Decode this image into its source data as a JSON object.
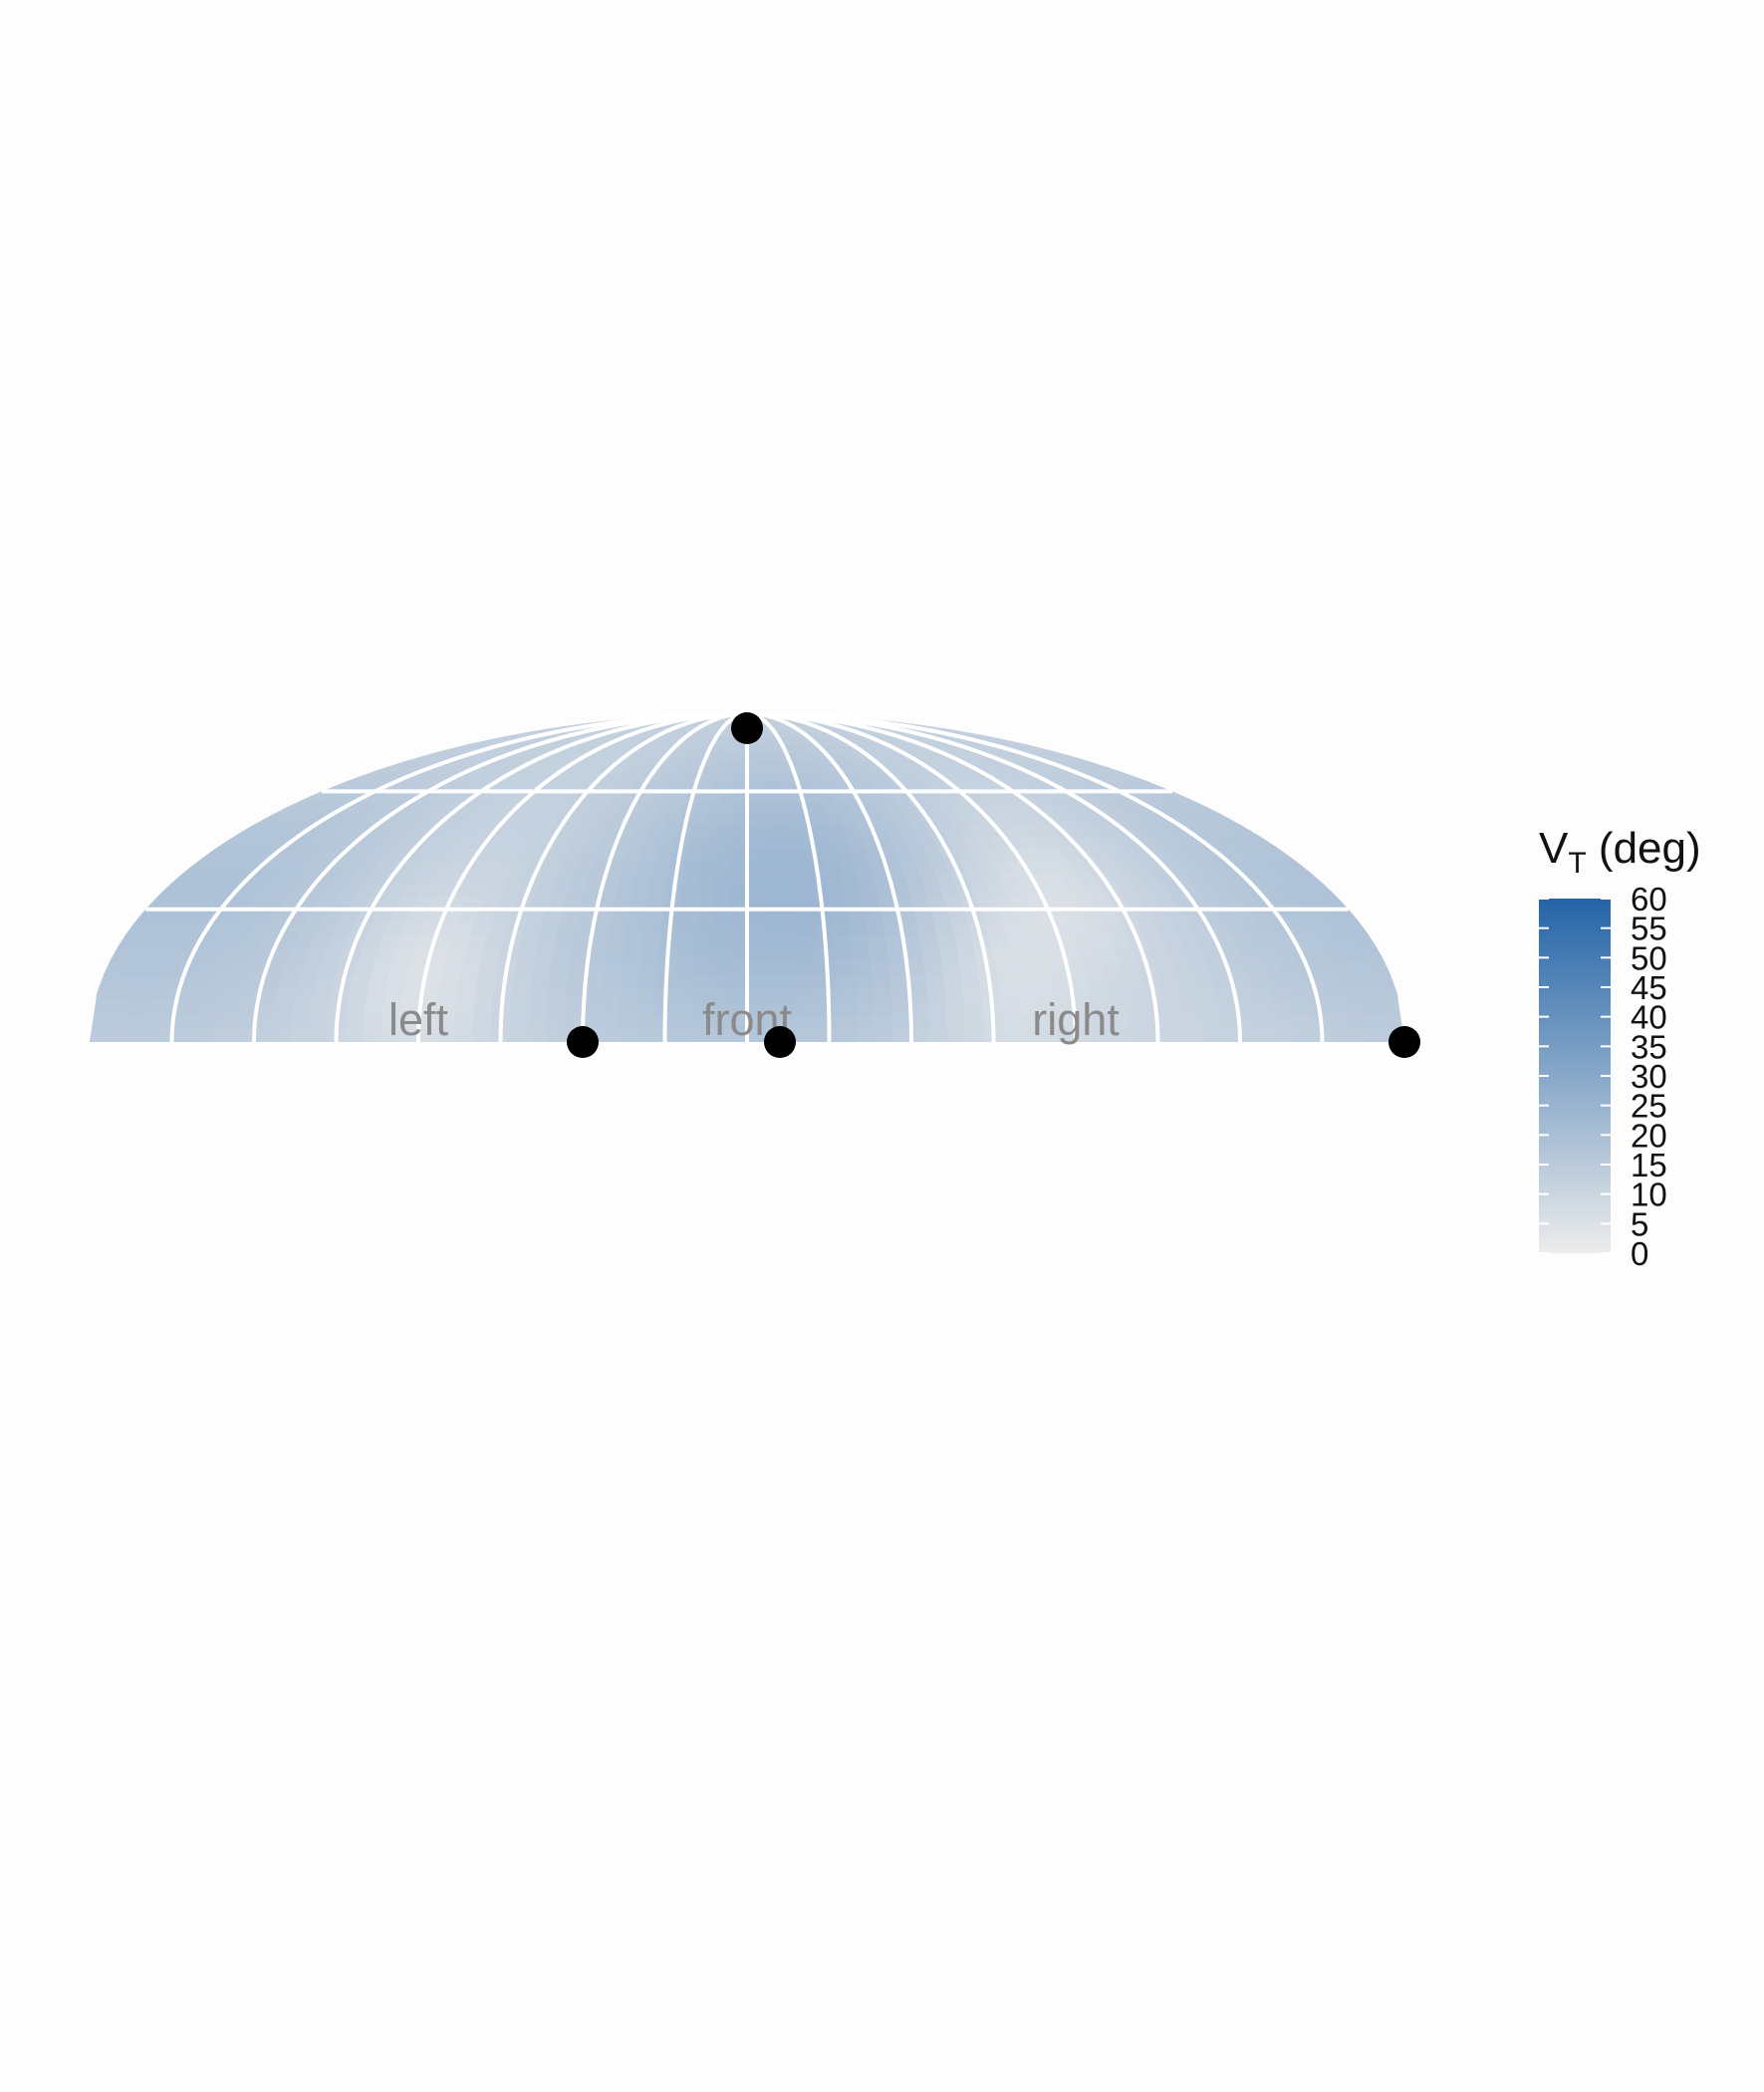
{
  "chart_data": {
    "type": "heatmap",
    "projection": "hemisphere (upper half of Mollweide-like ellipse)",
    "title": "",
    "direction_labels": [
      "left",
      "front",
      "right"
    ],
    "grid": true,
    "legend": {
      "title_main": "V",
      "title_sub": "T",
      "title_unit": " (deg)",
      "placement": "right",
      "range": [
        0,
        60
      ],
      "ticks": [
        "0",
        "5",
        "10",
        "15",
        "20",
        "25",
        "30",
        "35",
        "40",
        "45",
        "50",
        "55",
        "60"
      ],
      "color_low": "#ececec",
      "color_high": "#2464a8"
    },
    "points": [
      {
        "azimuth": 0,
        "elevation": 90
      },
      {
        "azimuth": -45,
        "elevation": 0
      },
      {
        "azimuth": 9,
        "elevation": 0
      },
      {
        "azimuth": 180,
        "elevation": 0
      }
    ],
    "field": {
      "base": 9,
      "blobs": [
        {
          "azimuth": 20,
          "elevation": 35,
          "peak": 13
        },
        {
          "azimuth": -30,
          "elevation": 20,
          "peak": 6
        },
        {
          "azimuth": -150,
          "elevation": 30,
          "peak": 7
        },
        {
          "azimuth": 160,
          "elevation": 30,
          "peak": 6
        }
      ],
      "troughs": [
        {
          "azimuth": -90,
          "elevation": 15,
          "depth": 6
        },
        {
          "azimuth": 70,
          "elevation": 15,
          "depth": 5
        },
        {
          "azimuth": 95,
          "elevation": 35,
          "depth": 5
        }
      ]
    }
  }
}
